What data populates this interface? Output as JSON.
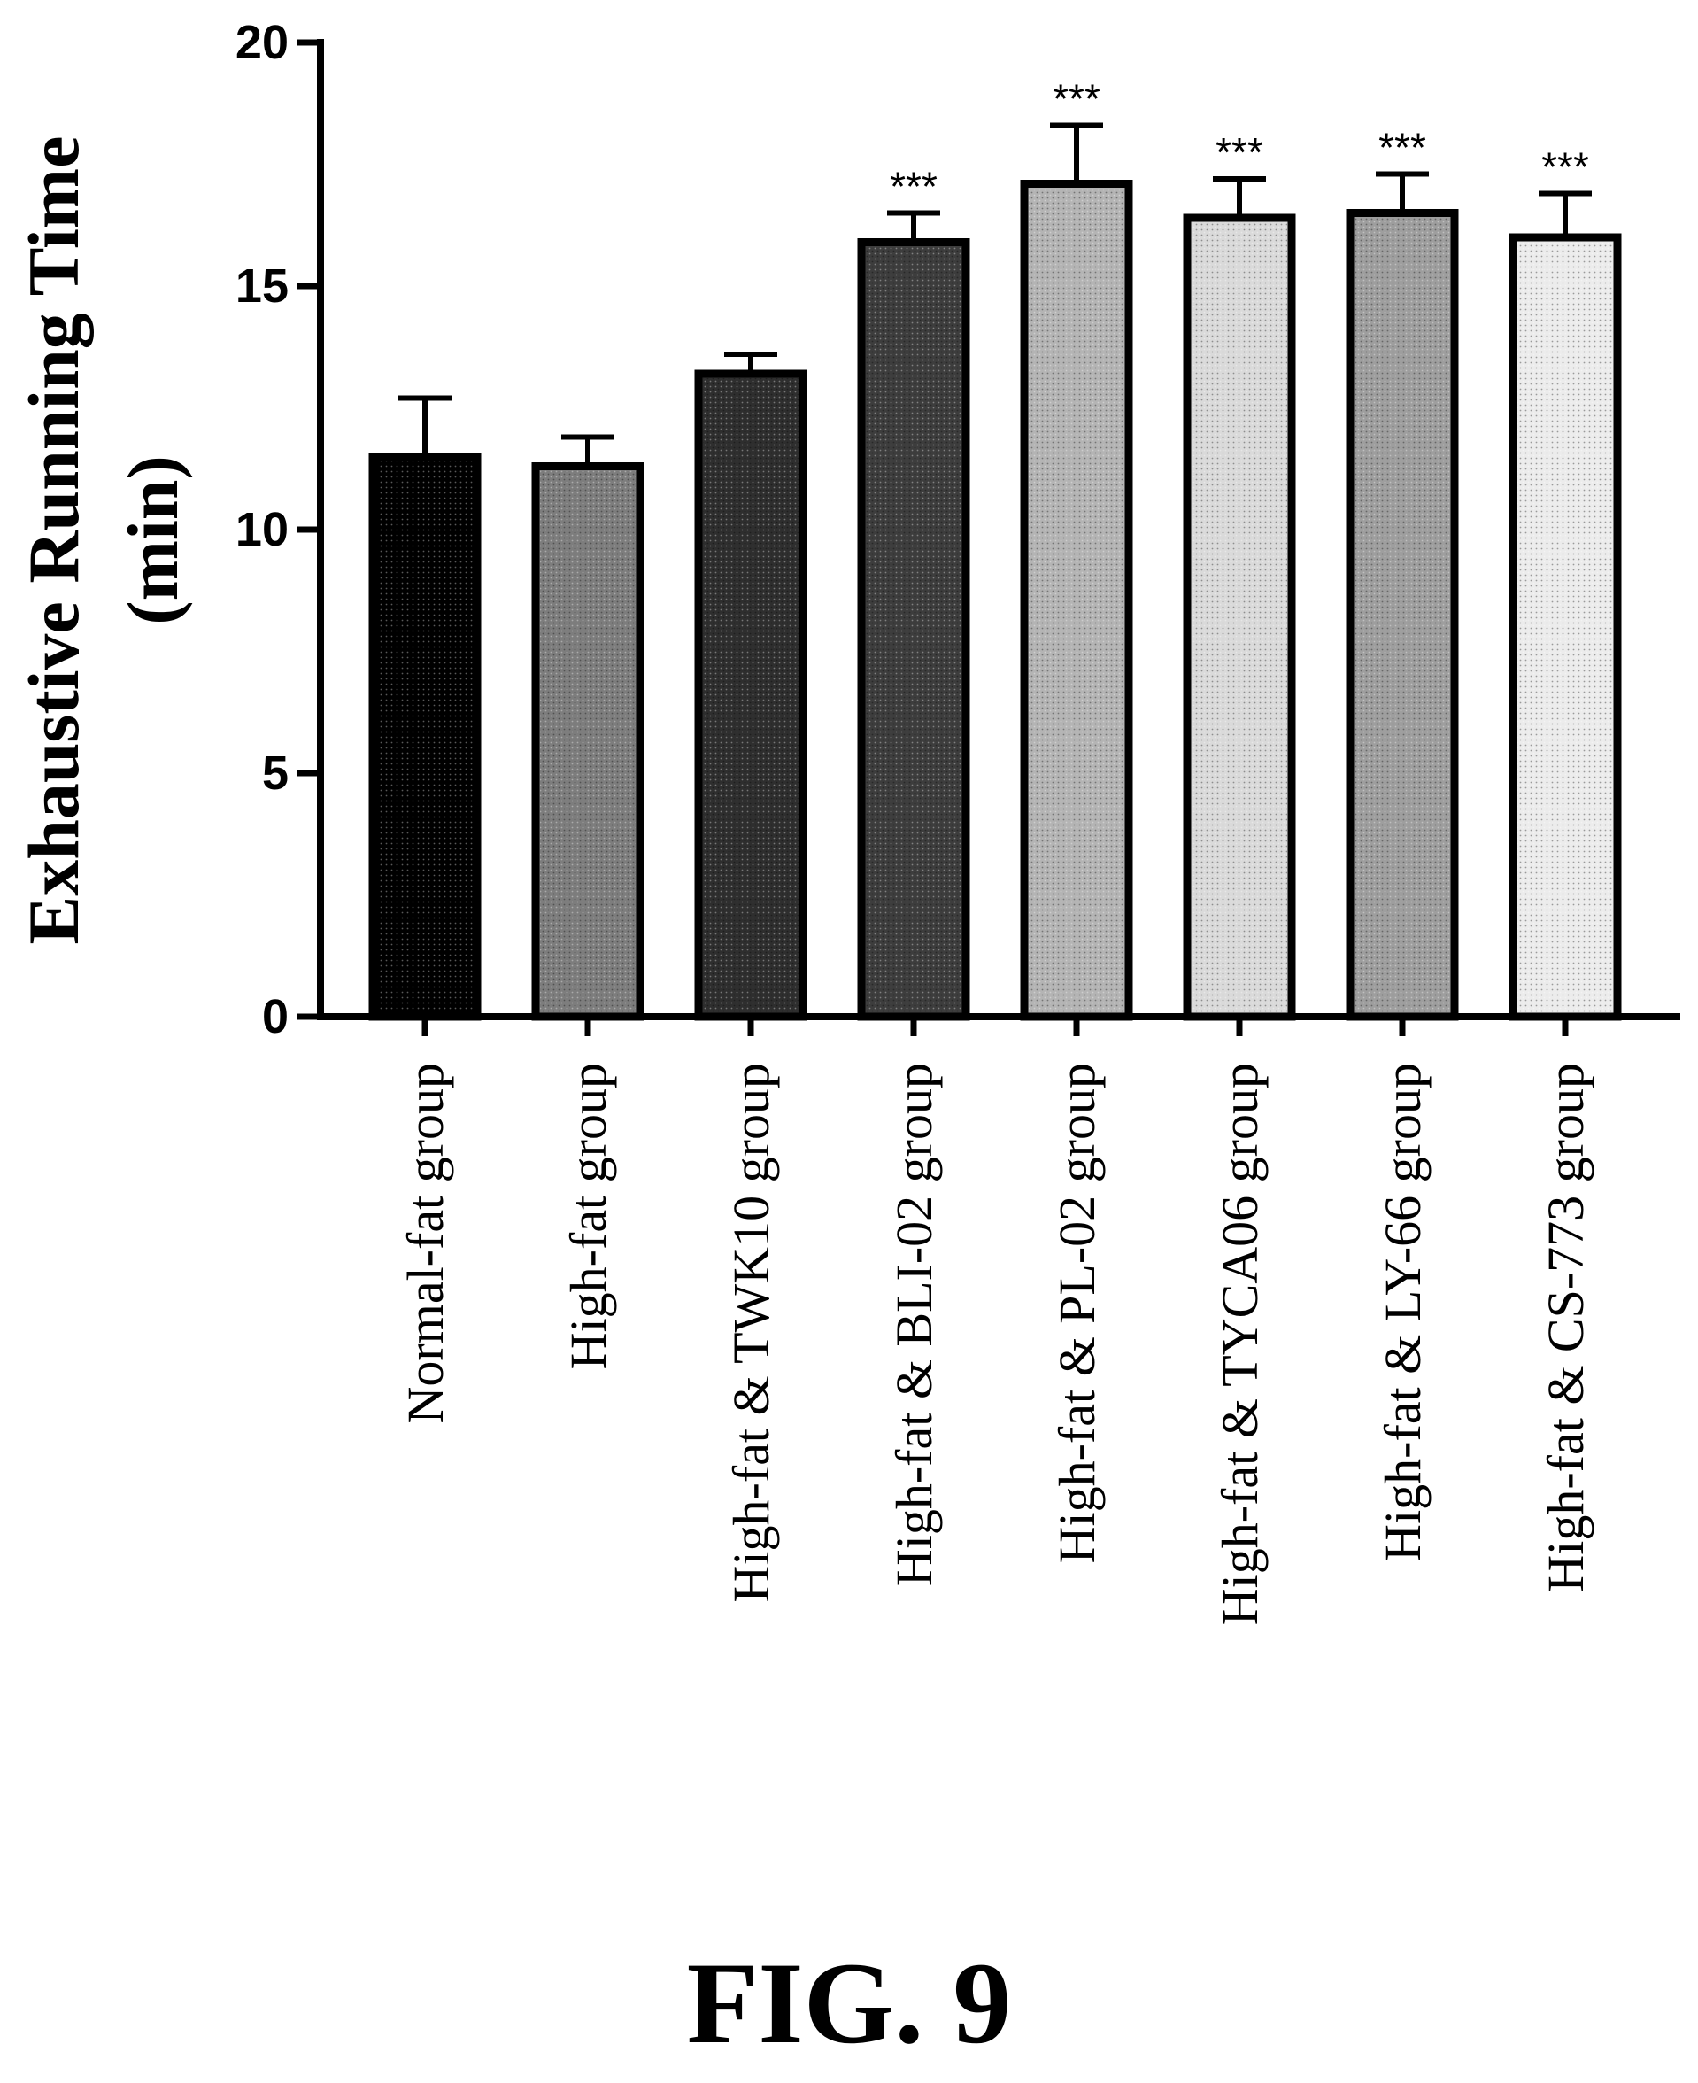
{
  "figure_label": "FIG. 9",
  "chart_data": {
    "type": "bar",
    "title": "",
    "xlabel": "",
    "ylabel_line1": "Exhaustive Running Time",
    "ylabel_line2": "(min)",
    "ylim": [
      0,
      20
    ],
    "y_ticks": [
      "0",
      "5",
      "10",
      "15",
      "20"
    ],
    "grid": false,
    "legend": "none",
    "categories": [
      "Normal-fat group",
      "High-fat group",
      "High-fat & TWK10 group",
      "High-fat & BLI-02 group",
      "High-fat & PL-02 group",
      "High-fat & TYCA06 group",
      "High-fat & LY-66 group",
      "High-fat & CS-773 group"
    ],
    "values": [
      11.5,
      11.3,
      13.2,
      15.9,
      17.1,
      16.4,
      16.5,
      16.0
    ],
    "error_upper": [
      12.7,
      11.9,
      13.6,
      16.5,
      18.3,
      17.2,
      17.3,
      16.9
    ],
    "significance": [
      "",
      "",
      "",
      "***",
      "***",
      "***",
      "***",
      "***"
    ],
    "bar_fills": [
      "#000000",
      "#7d7d7d",
      "#2e2e2e",
      "#3d3d3d",
      "#b4b4b4",
      "#dadada",
      "#9e9e9e",
      "#ececec"
    ]
  }
}
